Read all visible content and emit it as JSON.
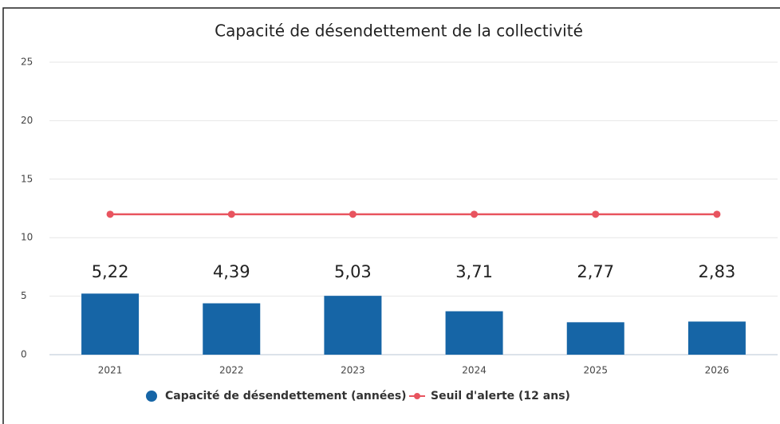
{
  "chart_data": {
    "type": "bar",
    "title": "Capacité de désendettement de la collectivité",
    "categories": [
      "2021",
      "2022",
      "2023",
      "2024",
      "2025",
      "2026"
    ],
    "series": [
      {
        "name": "Capacité de désendettement (années)",
        "type": "bar",
        "color": "#1665a6",
        "values": [
          5.22,
          4.39,
          5.03,
          3.71,
          2.77,
          2.83
        ],
        "value_labels": [
          "5,22",
          "4,39",
          "5,03",
          "3,71",
          "2,77",
          "2,83"
        ]
      },
      {
        "name": "Seuil d'alerte (12 ans)",
        "type": "line",
        "color": "#e8545f",
        "values": [
          12,
          12,
          12,
          12,
          12,
          12
        ]
      }
    ],
    "ylim": [
      0,
      25
    ],
    "yticks": [
      0,
      5,
      10,
      15,
      20,
      25
    ],
    "grid": true,
    "legend": "bottom"
  }
}
